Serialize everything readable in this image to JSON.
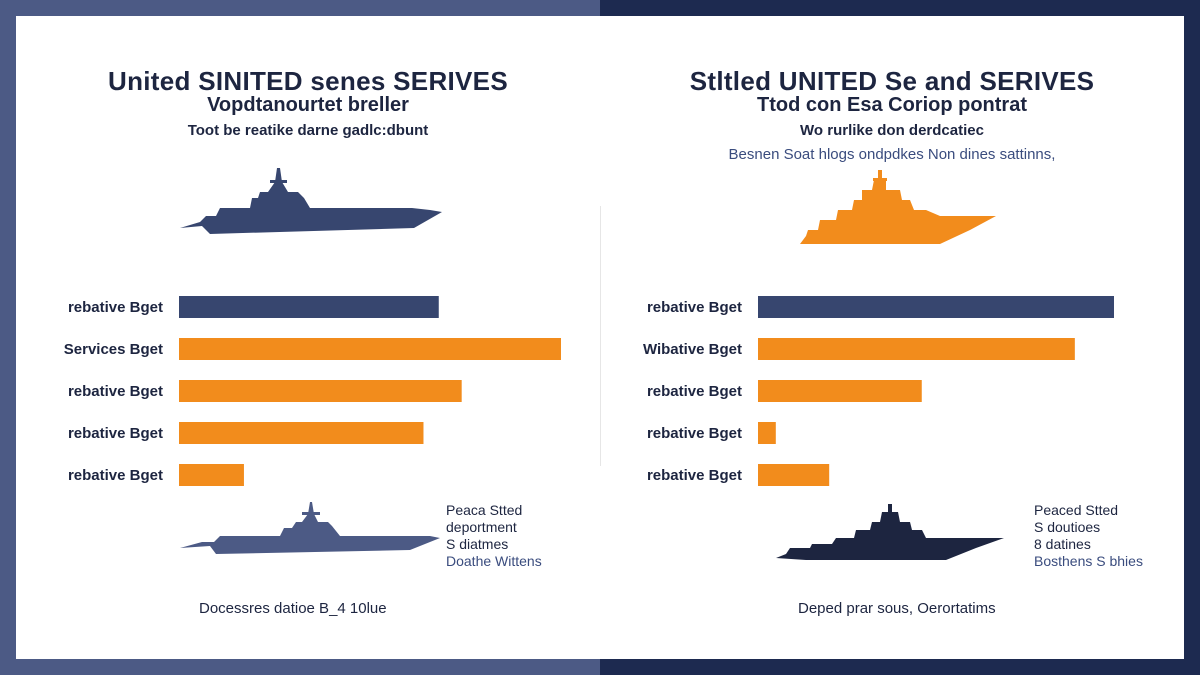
{
  "colors": {
    "navy": "#37466f",
    "orange": "#f28c1c",
    "dark_navy": "#1d2540"
  },
  "left": {
    "title": "United SINITED senes SERIVES",
    "subtitle": "Vopdtanourtet breller",
    "caption": "Toot be reatike darne gadlc:dbunt",
    "top_icon": "aircraft-carrier-icon",
    "bottom_icon": "aircraft-carrier-icon",
    "note_lines": [
      "Peaca Stted",
      "deportment",
      "S diatmes"
    ],
    "note_blue": "Doathe Wittens",
    "footer": "Docessres datioe B_4 10lue"
  },
  "right": {
    "title": "Stltled UNITED Se and SERIVES",
    "subtitle": "Ttod con Esa Coriop pontrat",
    "caption": "Wo rurlike don derdcatiec",
    "caption2": "Besnen Soat hlogs ondpdkes Non dines sattinns,",
    "top_icon": "warship-icon",
    "bottom_icon": "destroyer-icon",
    "note_lines": [
      "Peaced Stted",
      "S doutioes",
      "8 datines"
    ],
    "note_blue": "Bosthens S bhies",
    "footer": "Deped prar sous, Oerortatims"
  },
  "chart_data": [
    {
      "type": "bar",
      "orientation": "horizontal",
      "categories": [
        "rebative Bget",
        "Services Bget",
        "rebative Bget",
        "rebative Bget",
        "rebative Bget"
      ],
      "values": [
        68,
        100,
        74,
        64,
        17
      ],
      "bar_colors": [
        "#37466f",
        "#f28c1c",
        "#f28c1c",
        "#f28c1c",
        "#f28c1c"
      ],
      "xlim": [
        0,
        100
      ]
    },
    {
      "type": "bar",
      "orientation": "horizontal",
      "categories": [
        "rebative Bget",
        "Wibative Bget",
        "rebative Bget",
        "rebative Bget",
        "rebative Bget"
      ],
      "values": [
        100,
        89,
        46,
        5,
        20
      ],
      "bar_colors": [
        "#37466f",
        "#f28c1c",
        "#f28c1c",
        "#f28c1c",
        "#f28c1c"
      ],
      "xlim": [
        0,
        100
      ]
    }
  ]
}
